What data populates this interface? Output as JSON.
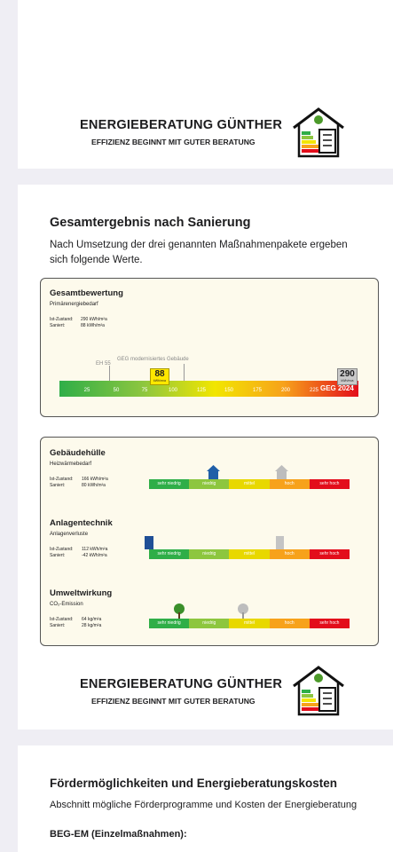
{
  "header": {
    "title": "ENERGIEBERATUNG GÜNTHER",
    "subtitle": "EFFIZIENZ BEGINNT MIT GUTER BERATUNG"
  },
  "section1": {
    "title": "Gesamtergebnis nach Sanierung",
    "intro": "Nach Umsetzung der drei genannten Maßnahmenpakete ergeben sich folgende Werte.",
    "result": {
      "title": "Gesamtbewertung",
      "subtitle": "Primärenergiebedarf",
      "rows": [
        [
          "Ist-Zustand:",
          "290 kWh/m²a"
        ],
        [
          "Saniert:",
          "88 kWh/m²a"
        ]
      ],
      "eh55": "EH 55",
      "geg_label": "GEG modernisiertes Gebäude",
      "scale": [
        "25",
        "50",
        "75",
        "100",
        "125",
        "150",
        "175",
        "200",
        "225"
      ],
      "after": "88",
      "before": "290",
      "unit": "kWh/m²a",
      "geg2024": "GEG 2024"
    },
    "levels": [
      "sehr niedrig",
      "niedrig",
      "mittel",
      "hoch",
      "sehr hoch"
    ],
    "categories": [
      {
        "title": "Gebäudehülle",
        "subtitle": "Heizwärmebedarf",
        "rows": [
          [
            "Ist-Zustand:",
            "166 kWh/m²a"
          ],
          [
            "Saniert:",
            "80 kWh/m²a"
          ]
        ]
      },
      {
        "title": "Anlagentechnik",
        "subtitle": "Anlagenverluste",
        "rows": [
          [
            "Ist-Zustand:",
            "112 kWh/m²a"
          ],
          [
            "Saniert:",
            "-42 kWh/m²a"
          ]
        ]
      },
      {
        "title": "Umweltwirkung",
        "subtitle": "CO₂-Emission",
        "rows": [
          [
            "Ist-Zustand:",
            "64 kg/m²a"
          ],
          [
            "Saniert:",
            "28 kg/m²a"
          ]
        ]
      }
    ]
  },
  "footer_logo": {
    "title": "ENERGIEBERATUNG GÜNTHER",
    "subtitle": "EFFIZIENZ BEGINNT MIT GUTER BERATUNG"
  },
  "section2": {
    "title": "Fördermöglichkeiten und Energieberatungskosten",
    "intro": "Abschnitt mögliche Förderprogramme und Kosten der Energieberatung",
    "subheading": "BEG-EM (Einzelmaßnahmen):"
  }
}
